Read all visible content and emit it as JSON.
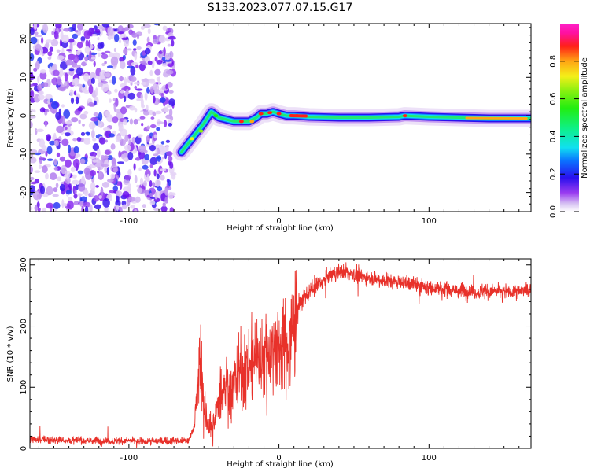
{
  "figure": {
    "title": "S133.2023.077.07.15.G17"
  },
  "chart_data": [
    {
      "type": "heatmap",
      "xlabel": "Height of straight line (km)",
      "ylabel": "Frequency (Hz)",
      "xlim": [
        -166,
        168
      ],
      "ylim": [
        -25,
        24
      ],
      "xticks": [
        -100,
        0,
        100
      ],
      "yticks": [
        -20,
        -10,
        0,
        10,
        20
      ],
      "xtick_labels": [
        "-100",
        "0",
        "100"
      ],
      "ytick_labels": [
        "-20",
        "-10",
        "0",
        "10",
        "20"
      ],
      "grid": false,
      "colorbar": {
        "label": "Normalized spectral amplitude",
        "range": [
          0,
          1
        ],
        "ticks": [
          0.0,
          0.2,
          0.4,
          0.6,
          0.8
        ],
        "tick_labels": [
          "0.0",
          "0.2",
          "0.4",
          "0.6",
          "0.8"
        ],
        "colormap": "gist_ncar-like (white-violet-blue-cyan-green-yellow-red-magenta)"
      },
      "ridge": {
        "x": [
          -65,
          -58,
          -50,
          -45,
          -40,
          -30,
          -20,
          -15,
          -12,
          -8,
          -4,
          0,
          5,
          10,
          20,
          40,
          60,
          80,
          84,
          100,
          120,
          140,
          168
        ],
        "y": [
          -9.5,
          -6,
          -2,
          1,
          -0.5,
          -1.5,
          -1.5,
          -0.5,
          0.5,
          0.5,
          1,
          0.5,
          0,
          0,
          -0.3,
          -0.5,
          -0.5,
          -0.3,
          0,
          -0.3,
          -0.5,
          -0.7,
          -0.7
        ]
      },
      "noise_region_x": [
        -166,
        -70
      ]
    },
    {
      "type": "line",
      "xlabel": "Height of straight line (km)",
      "ylabel": "SNR (10 * v/v)",
      "xlim": [
        -166,
        168
      ],
      "ylim": [
        0,
        310
      ],
      "xticks": [
        -100,
        0,
        100
      ],
      "yticks": [
        0,
        100,
        200,
        300
      ],
      "xtick_labels": [
        "-100",
        "0",
        "100"
      ],
      "ytick_labels": [
        "0",
        "100",
        "200",
        "300"
      ],
      "grid": false,
      "color": "#e8312a",
      "series": [
        {
          "x": [
            -166,
            -150,
            -130,
            -110,
            -90,
            -70,
            -60,
            -56,
            -54,
            -52,
            -50,
            -47,
            -44,
            -40,
            -36,
            -32,
            -28,
            -24,
            -20,
            -16,
            -12,
            -8,
            -4,
            0,
            4,
            8,
            10,
            13,
            16,
            20,
            25,
            30,
            35,
            40,
            45,
            50,
            60,
            70,
            80,
            90,
            95,
            100,
            110,
            120,
            130,
            140,
            150,
            160,
            168
          ],
          "y": [
            15,
            14,
            13,
            12,
            12,
            12,
            13,
            40,
            100,
            150,
            60,
            40,
            30,
            80,
            110,
            90,
            130,
            120,
            140,
            140,
            150,
            155,
            160,
            165,
            170,
            180,
            200,
            230,
            245,
            255,
            265,
            275,
            285,
            290,
            288,
            285,
            280,
            275,
            272,
            268,
            265,
            262,
            260,
            258,
            257,
            256,
            257,
            257,
            258
          ]
        }
      ]
    }
  ]
}
